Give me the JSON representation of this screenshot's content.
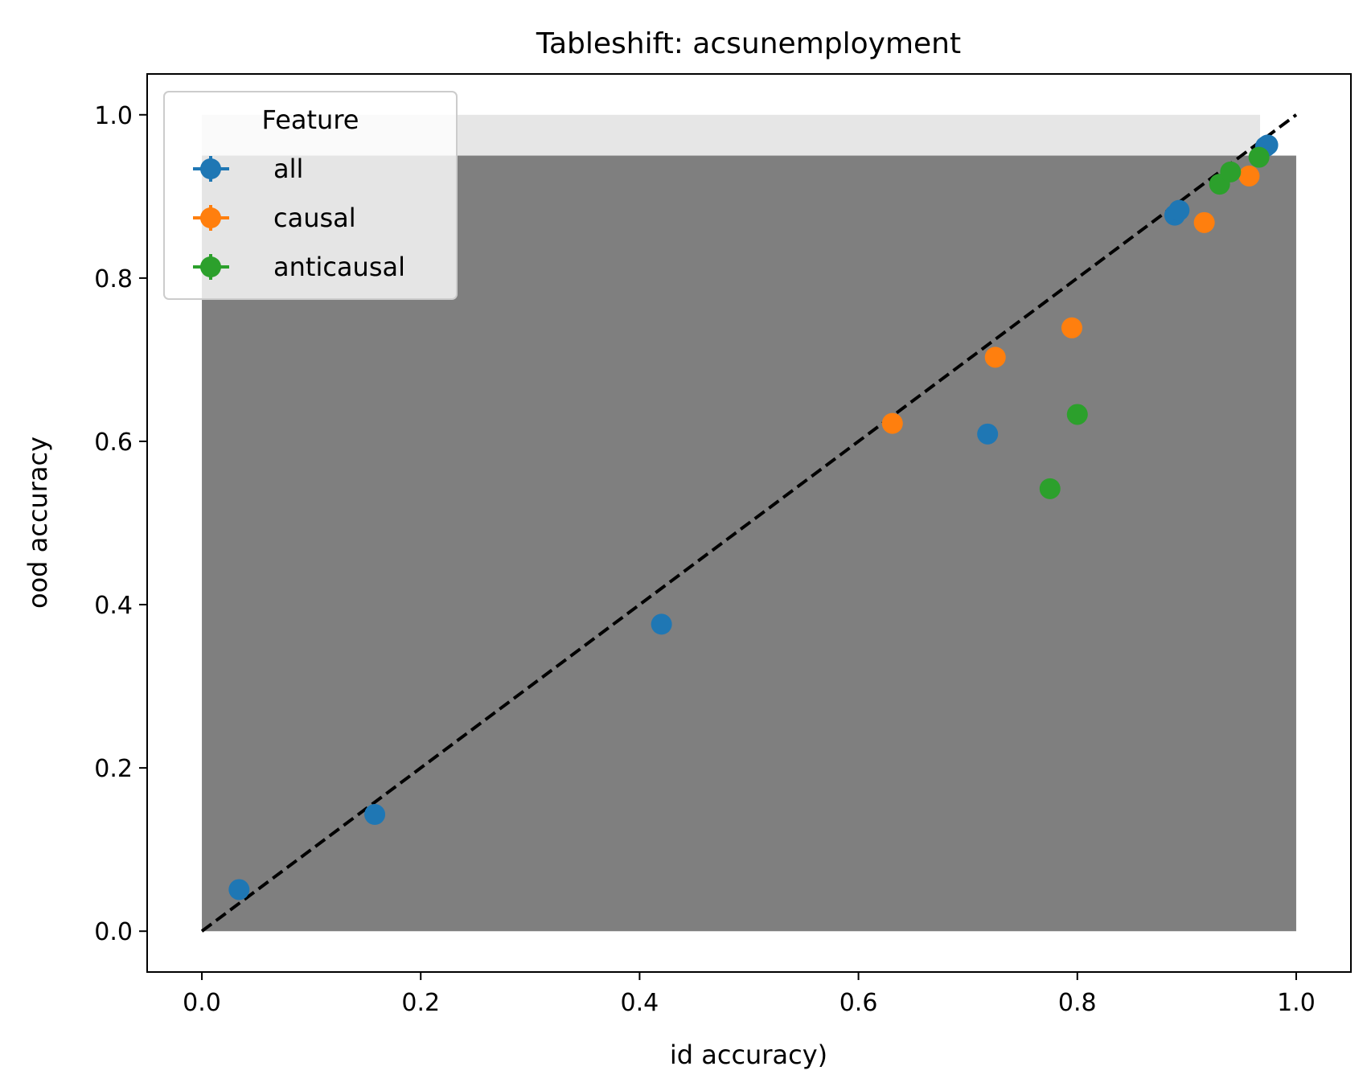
{
  "chart_data": {
    "type": "scatter",
    "title": "Tableshift: acsunemployment",
    "xlabel": "id accuracy)",
    "ylabel": "ood accuracy",
    "xlim": [
      -0.05,
      1.05
    ],
    "ylim": [
      -0.05,
      1.05
    ],
    "xticks": [
      "0.0",
      "0.2",
      "0.4",
      "0.6",
      "0.8",
      "1.0"
    ],
    "yticks": [
      "0.0",
      "0.2",
      "0.4",
      "0.6",
      "0.8",
      "1.0"
    ],
    "grid": false,
    "legend": {
      "title": "Feature",
      "placement": "upper-left"
    },
    "diagonal": {
      "x": [
        0,
        1
      ],
      "y": [
        0,
        1
      ],
      "style": "dashed",
      "color": "#000000"
    },
    "shaded_regions": [
      {
        "x": [
          0,
          0.967
        ],
        "y": [
          0,
          1.0
        ],
        "color": "#e6e6e6"
      },
      {
        "x": [
          0,
          1.0
        ],
        "y": [
          0,
          0.95
        ],
        "color": "#7f7f7f"
      }
    ],
    "series": [
      {
        "name": "all",
        "color": "#1f77b4",
        "x": [
          0.034,
          0.158,
          0.42,
          0.718,
          0.889,
          0.893,
          0.972,
          0.974
        ],
        "y": [
          0.051,
          0.143,
          0.376,
          0.609,
          0.877,
          0.883,
          0.961,
          0.963
        ]
      },
      {
        "name": "causal",
        "color": "#ff7f0e",
        "x": [
          0.631,
          0.725,
          0.795,
          0.916,
          0.957
        ],
        "y": [
          0.622,
          0.703,
          0.739,
          0.868,
          0.925
        ]
      },
      {
        "name": "anticausal",
        "color": "#2ca02c",
        "x": [
          0.775,
          0.8,
          0.93,
          0.94,
          0.966
        ],
        "y": [
          0.542,
          0.633,
          0.915,
          0.93,
          0.948
        ]
      }
    ]
  }
}
